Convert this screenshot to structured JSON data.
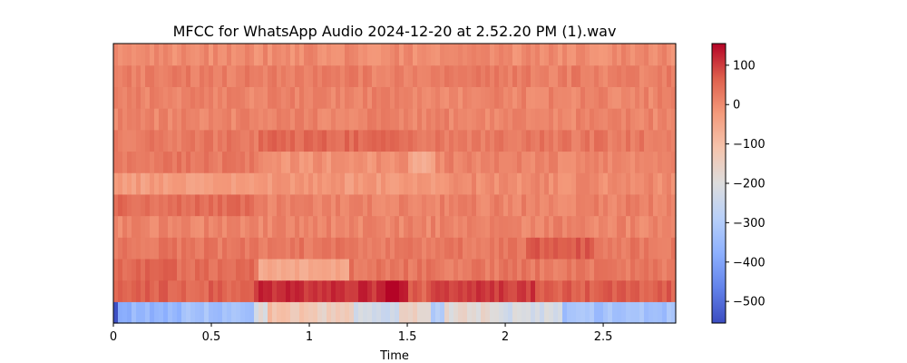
{
  "chart_data": {
    "type": "heatmap",
    "title": "MFCC for WhatsApp Audio 2024-12-20 at 2.52.20 PM (1).wav",
    "xlabel": "Time",
    "ylabel": "",
    "xlim": [
      0,
      2.87
    ],
    "x_ticks": [
      {
        "value": 0,
        "label": "0"
      },
      {
        "value": 0.5,
        "label": "0.5"
      },
      {
        "value": 1,
        "label": "1"
      },
      {
        "value": 1.5,
        "label": "1.5"
      },
      {
        "value": 2,
        "label": "2"
      },
      {
        "value": 2.5,
        "label": "2.5"
      }
    ],
    "colorbar": {
      "colormap": "coolwarm",
      "range": [
        -555,
        155
      ],
      "ticks": [
        {
          "value": 100,
          "label": "100"
        },
        {
          "value": 0,
          "label": "0"
        },
        {
          "value": -100,
          "label": "−100"
        },
        {
          "value": -200,
          "label": "−200"
        },
        {
          "value": -300,
          "label": "−300"
        },
        {
          "value": -400,
          "label": "−400"
        },
        {
          "value": -500,
          "label": "−500"
        }
      ]
    },
    "n_coefficients": 13,
    "n_frames": 124,
    "grid": false,
    "approx_row_profiles": [
      {
        "coefficient": 0,
        "segments": [
          {
            "t0": 0.0,
            "t1": 0.03,
            "value": -530
          },
          {
            "t0": 0.03,
            "t1": 0.35,
            "value": -360
          },
          {
            "t0": 0.35,
            "t1": 0.72,
            "value": -330
          },
          {
            "t0": 0.72,
            "t1": 0.78,
            "value": -200
          },
          {
            "t0": 0.78,
            "t1": 1.05,
            "value": -110
          },
          {
            "t0": 1.05,
            "t1": 1.22,
            "value": -150
          },
          {
            "t0": 1.22,
            "t1": 1.45,
            "value": -230
          },
          {
            "t0": 1.45,
            "t1": 1.62,
            "value": -160
          },
          {
            "t0": 1.62,
            "t1": 1.68,
            "value": -290
          },
          {
            "t0": 1.68,
            "t1": 1.95,
            "value": -180
          },
          {
            "t0": 1.95,
            "t1": 2.3,
            "value": -220
          },
          {
            "t0": 2.3,
            "t1": 2.87,
            "value": -330
          }
        ]
      },
      {
        "coefficient": 1,
        "segments": [
          {
            "t0": 0.0,
            "t1": 0.72,
            "value": 60
          },
          {
            "t0": 0.72,
            "t1": 1.4,
            "value": 115
          },
          {
            "t0": 1.4,
            "t1": 1.5,
            "value": 150
          },
          {
            "t0": 1.5,
            "t1": 1.62,
            "value": 60
          },
          {
            "t0": 1.62,
            "t1": 2.15,
            "value": 105
          },
          {
            "t0": 2.15,
            "t1": 2.87,
            "value": 65
          }
        ]
      },
      {
        "coefficient": 2,
        "segments": [
          {
            "t0": 0.0,
            "t1": 0.75,
            "value": 50
          },
          {
            "t0": 0.75,
            "t1": 1.2,
            "value": -50
          },
          {
            "t0": 1.2,
            "t1": 2.87,
            "value": 30
          }
        ]
      },
      {
        "coefficient": 3,
        "segments": [
          {
            "t0": 0.0,
            "t1": 2.1,
            "value": 30
          },
          {
            "t0": 2.1,
            "t1": 2.45,
            "value": 75
          },
          {
            "t0": 2.45,
            "t1": 2.87,
            "value": 30
          }
        ]
      },
      {
        "coefficient": 4,
        "segments": [
          {
            "t0": 0.0,
            "t1": 2.87,
            "value": 10
          }
        ]
      },
      {
        "coefficient": 5,
        "segments": [
          {
            "t0": 0.0,
            "t1": 0.75,
            "value": 45
          },
          {
            "t0": 0.75,
            "t1": 2.87,
            "value": 15
          }
        ]
      },
      {
        "coefficient": 6,
        "segments": [
          {
            "t0": 0.0,
            "t1": 0.75,
            "value": -30
          },
          {
            "t0": 0.75,
            "t1": 1.7,
            "value": -20
          },
          {
            "t0": 1.7,
            "t1": 2.87,
            "value": 0
          }
        ]
      },
      {
        "coefficient": 7,
        "segments": [
          {
            "t0": 0.0,
            "t1": 0.75,
            "value": 30
          },
          {
            "t0": 0.75,
            "t1": 1.5,
            "value": -10
          },
          {
            "t0": 1.5,
            "t1": 1.65,
            "value": -50
          },
          {
            "t0": 1.65,
            "t1": 2.87,
            "value": 10
          }
        ]
      },
      {
        "coefficient": 8,
        "segments": [
          {
            "t0": 0.0,
            "t1": 0.75,
            "value": 30
          },
          {
            "t0": 0.75,
            "t1": 1.5,
            "value": 50
          },
          {
            "t0": 1.5,
            "t1": 2.87,
            "value": 30
          }
        ]
      },
      {
        "coefficient": 9,
        "segments": [
          {
            "t0": 0.0,
            "t1": 2.87,
            "value": 10
          }
        ]
      },
      {
        "coefficient": 10,
        "segments": [
          {
            "t0": 0.0,
            "t1": 2.87,
            "value": 10
          }
        ]
      },
      {
        "coefficient": 11,
        "segments": [
          {
            "t0": 0.0,
            "t1": 2.87,
            "value": 20
          }
        ]
      },
      {
        "coefficient": 12,
        "segments": [
          {
            "t0": 0.0,
            "t1": 2.87,
            "value": 0
          }
        ]
      }
    ]
  }
}
